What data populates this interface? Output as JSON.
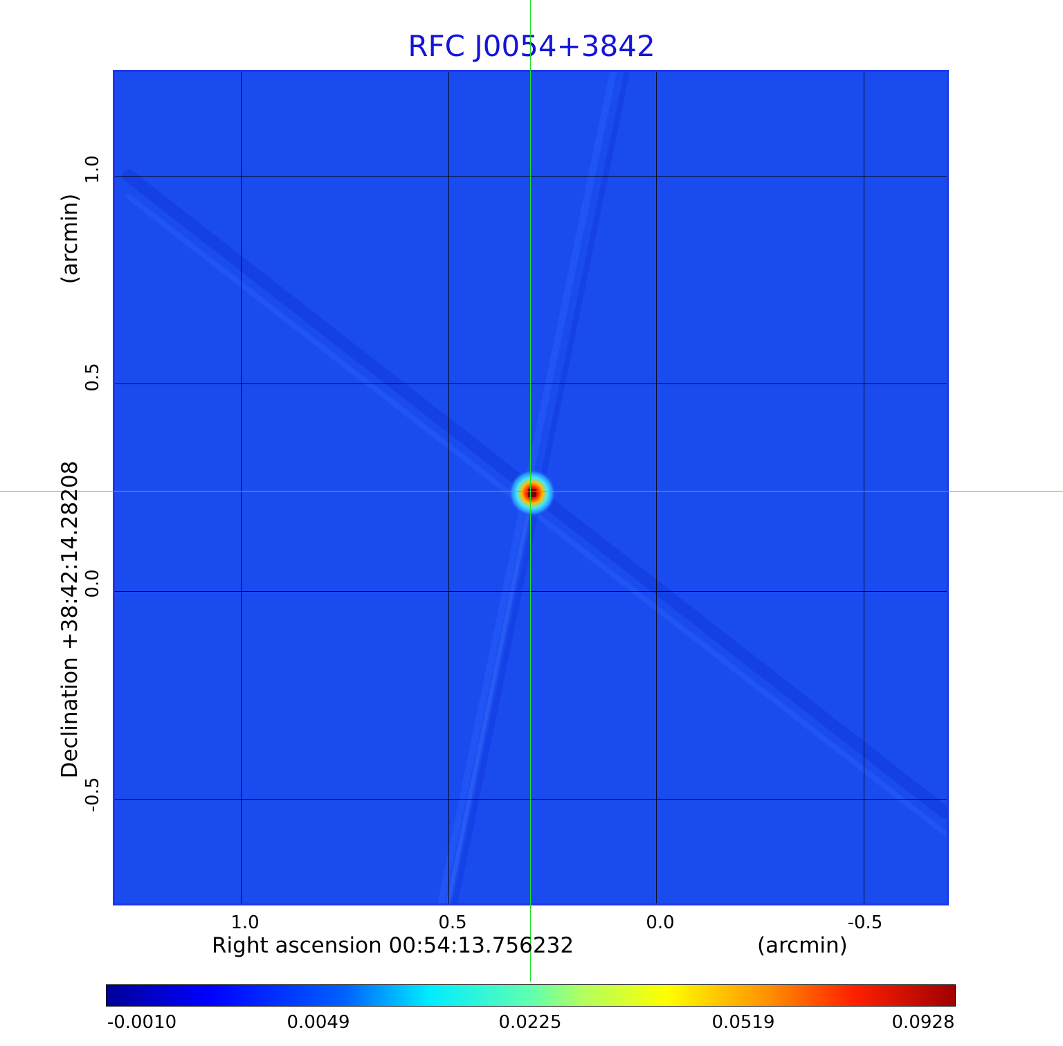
{
  "title": "RFC J0054+3842",
  "axes": {
    "x_label": "Right ascension  00:54:13.756232",
    "x_unit": "(arcmin)",
    "y_label": "Declination  +38:42:14.28208",
    "y_unit": "(arcmin)",
    "x_ticks": [
      "1.0",
      "0.5",
      "0.0",
      "-0.5"
    ],
    "y_ticks": [
      "1.0",
      "0.5",
      "0.0",
      "-0.5"
    ]
  },
  "colorbar": {
    "labels": [
      "-0.0010",
      "0.0049",
      "0.0225",
      "0.0519",
      "0.0928"
    ]
  },
  "colors": {
    "background_map": "#1a4bef",
    "title": "#1515d6",
    "crosshair": "#22e022",
    "peak": "#b30000"
  }
}
